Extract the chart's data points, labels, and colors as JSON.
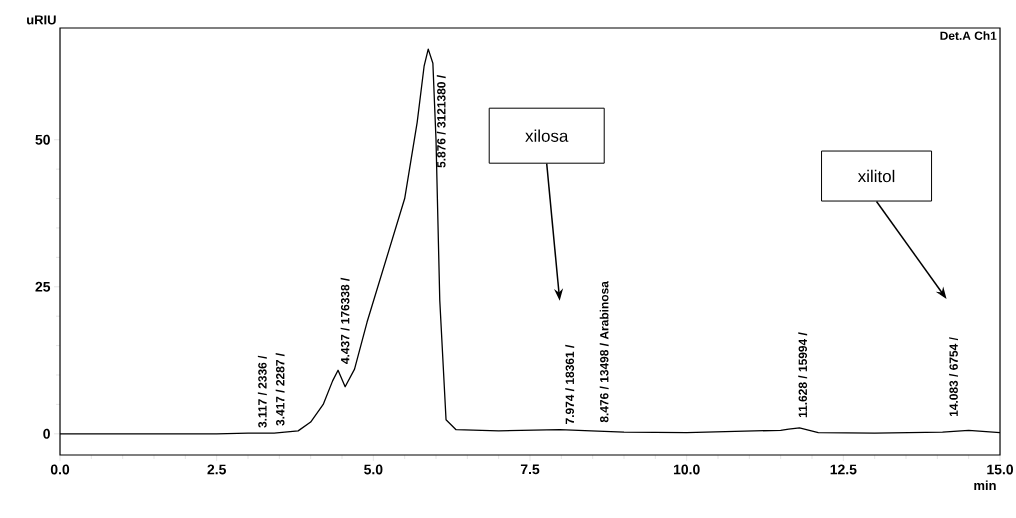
{
  "chart_data": {
    "type": "line",
    "xlabel": "min",
    "ylabel": "uRIU",
    "x": [
      0,
      2.5,
      3.0,
      3.117,
      3.417,
      3.8,
      4.0,
      4.2,
      4.35,
      4.437,
      4.55,
      4.7,
      4.9,
      5.2,
      5.5,
      5.7,
      5.81,
      5.876,
      5.95,
      6.0,
      6.06,
      6.16,
      6.32,
      7.0,
      7.974,
      8.476,
      9.0,
      10.0,
      11.5,
      11.628,
      11.8,
      12.1,
      13.0,
      14.083,
      14.5,
      15.0
    ],
    "series": [
      {
        "color": "#000000",
        "values": [
          0,
          0,
          0.1,
          0.1,
          0.1,
          0.5,
          2,
          5,
          9,
          10.8,
          8,
          11,
          19,
          29.5,
          40,
          53,
          62.5,
          65.4,
          63,
          50,
          22.7,
          2.4,
          0.7,
          0.5,
          0.7,
          0.5,
          0.3,
          0.2,
          0.6,
          0.8,
          1.0,
          0.2,
          0.1,
          0.3,
          0.6,
          0.2
        ]
      }
    ],
    "xlim": [
      0,
      15
    ],
    "ylim": [
      -3.6,
      69
    ],
    "xticks": [
      {
        "value": 0,
        "label": "0.0"
      },
      {
        "value": 2.5,
        "label": "2.5"
      },
      {
        "value": 5,
        "label": "5.0"
      },
      {
        "value": 7.5,
        "label": "7.5"
      },
      {
        "value": 10,
        "label": "10.0"
      },
      {
        "value": 12.5,
        "label": "12.5"
      },
      {
        "value": 15,
        "label": "15.0"
      }
    ],
    "yticks": [
      0,
      25,
      50
    ],
    "annotations": [
      {
        "text": "3.117 / 2336 /",
        "x": 3.117,
        "y": 0.1
      },
      {
        "text": "3.417 / 2287 /",
        "x": 3.417,
        "y": 0.1
      },
      {
        "text": "4.437 / 176338 /",
        "x": 4.437,
        "y": 10.8
      },
      {
        "text": "5.876 / 3121380 /",
        "x": 5.876,
        "y": 65.4
      },
      {
        "text": "7.974 / 18361 /",
        "x": 7.974,
        "y": 0.7
      },
      {
        "text": "8.476 / 13498 / Arabinosa",
        "x": 8.476,
        "y": 0.5
      },
      {
        "text": "11.628 / 15994 /",
        "x": 11.628,
        "y": 0.8
      },
      {
        "text": "14.083 / 6754 /",
        "x": 14.083,
        "y": 0.3
      },
      "Det.A Ch1",
      "xilosa",
      "xilitol"
    ]
  }
}
